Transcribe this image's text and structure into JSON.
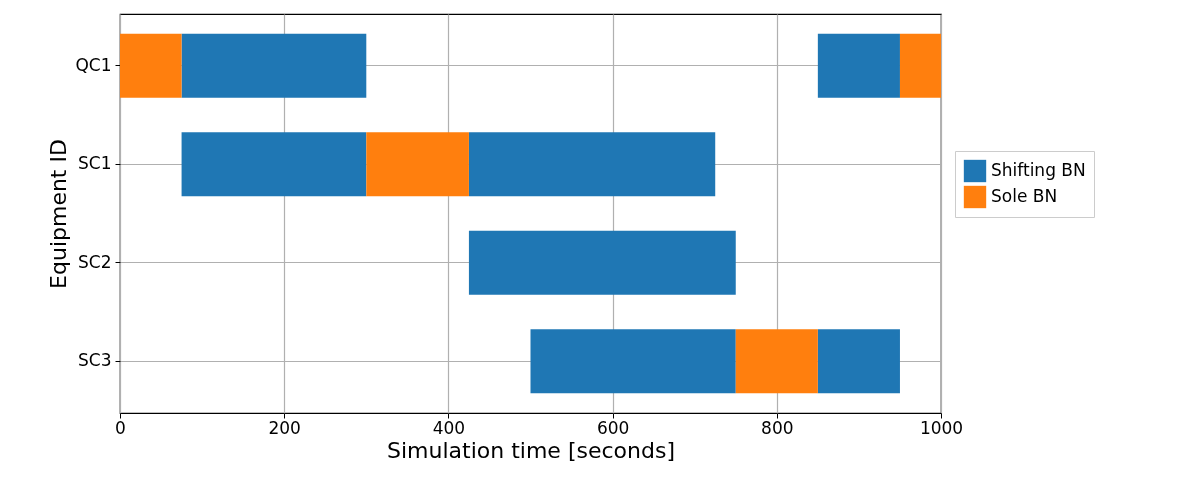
{
  "chart_data": {
    "type": "bar",
    "orientation": "horizontal",
    "xlabel": "Simulation time [seconds]",
    "ylabel": "Equipment ID",
    "categories": [
      "QC1",
      "SC1",
      "SC2",
      "SC3"
    ],
    "series": [
      {
        "name": "Shifting BN",
        "color": "#1f77b4",
        "values": [
          225,
          225,
          325,
          250
        ],
        "base": [
          75,
          75,
          425,
          500
        ]
      },
      {
        "color": "#1f77b4",
        "values": [
          100,
          300,
          null,
          100
        ],
        "base": [
          850,
          425,
          null,
          850
        ]
      },
      {
        "name": "Sole BN",
        "color": "#ff7f0e",
        "values": [
          75,
          125,
          null,
          100
        ],
        "base": [
          0,
          300,
          null,
          750
        ]
      },
      {
        "color": "#ff7f0e",
        "values": [
          50,
          null,
          null,
          null
        ],
        "base": [
          950,
          null,
          null,
          null
        ]
      }
    ],
    "xlim": [
      0,
      1000
    ],
    "xticks": [
      0,
      200,
      400,
      600,
      800,
      1000
    ],
    "grid": true,
    "legend": "right"
  }
}
